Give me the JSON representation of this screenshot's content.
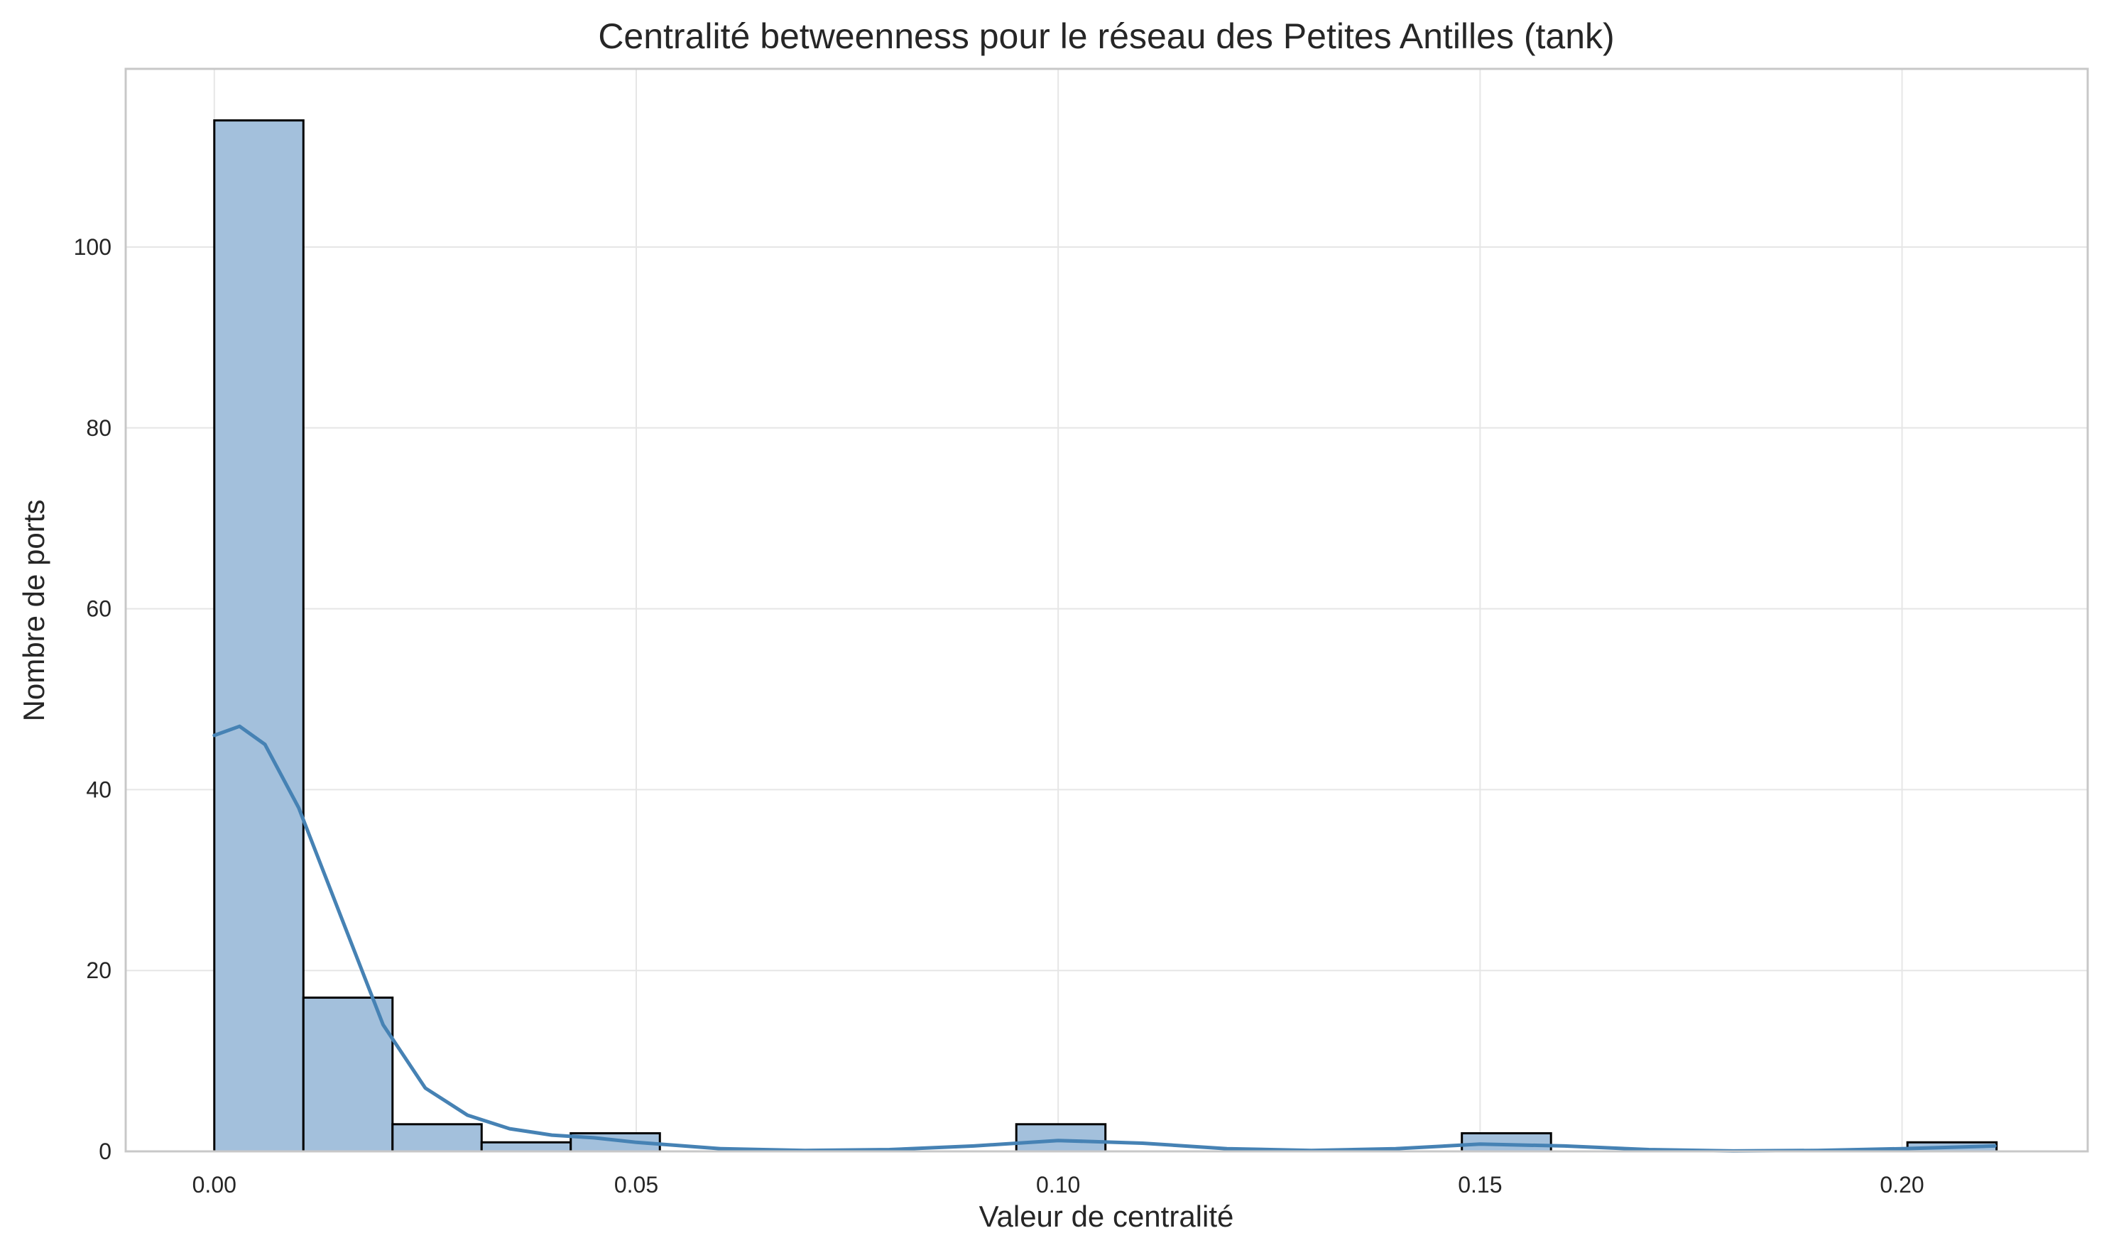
{
  "chart_data": {
    "type": "bar",
    "title": "Centralité betweenness pour le réseau des Petites Antilles (tank)",
    "xlabel": "Valeur de centralité",
    "ylabel": "Nombre de ports",
    "xlim": [
      -0.0105,
      0.222
    ],
    "ylim": [
      0,
      119.7
    ],
    "xticks": [
      0.0,
      0.05,
      0.1,
      0.15,
      0.2
    ],
    "xtick_labels": [
      "0.00",
      "0.05",
      "0.10",
      "0.15",
      "0.20"
    ],
    "yticks": [
      0,
      20,
      40,
      60,
      80,
      100
    ],
    "ytick_labels": [
      "0",
      "20",
      "40",
      "60",
      "80",
      "100"
    ],
    "grid": true,
    "bin_edges": [
      0.0,
      0.01056,
      0.02112,
      0.03168,
      0.04224,
      0.0528,
      0.06336,
      0.07392,
      0.08448,
      0.09504,
      0.1056,
      0.11616,
      0.12672,
      0.13728,
      0.14784,
      0.1584,
      0.16896,
      0.17952,
      0.19008,
      0.20064,
      0.2112
    ],
    "counts": [
      114,
      17,
      3,
      1,
      2,
      0,
      0,
      0,
      0,
      3,
      0,
      0,
      0,
      0,
      2,
      0,
      0,
      0,
      0,
      1
    ],
    "kde": {
      "x": [
        0.0,
        0.003,
        0.006,
        0.01,
        0.015,
        0.02,
        0.025,
        0.03,
        0.035,
        0.04,
        0.045,
        0.05,
        0.06,
        0.07,
        0.08,
        0.09,
        0.1,
        0.11,
        0.12,
        0.13,
        0.14,
        0.15,
        0.16,
        0.17,
        0.18,
        0.19,
        0.2,
        0.211
      ],
      "y": [
        46,
        47,
        45,
        38,
        26,
        14,
        7,
        4,
        2.5,
        1.8,
        1.5,
        1.0,
        0.3,
        0.1,
        0.2,
        0.6,
        1.2,
        0.9,
        0.3,
        0.1,
        0.3,
        0.8,
        0.6,
        0.2,
        0.05,
        0.1,
        0.3,
        0.6
      ]
    },
    "colors": {
      "bar_fill": "#a3c0dc",
      "bar_edge": "#000000",
      "kde_line": "#4682b4",
      "grid": "#e6e6e6",
      "spine": "#c8c8c8",
      "text": "#262626"
    }
  }
}
